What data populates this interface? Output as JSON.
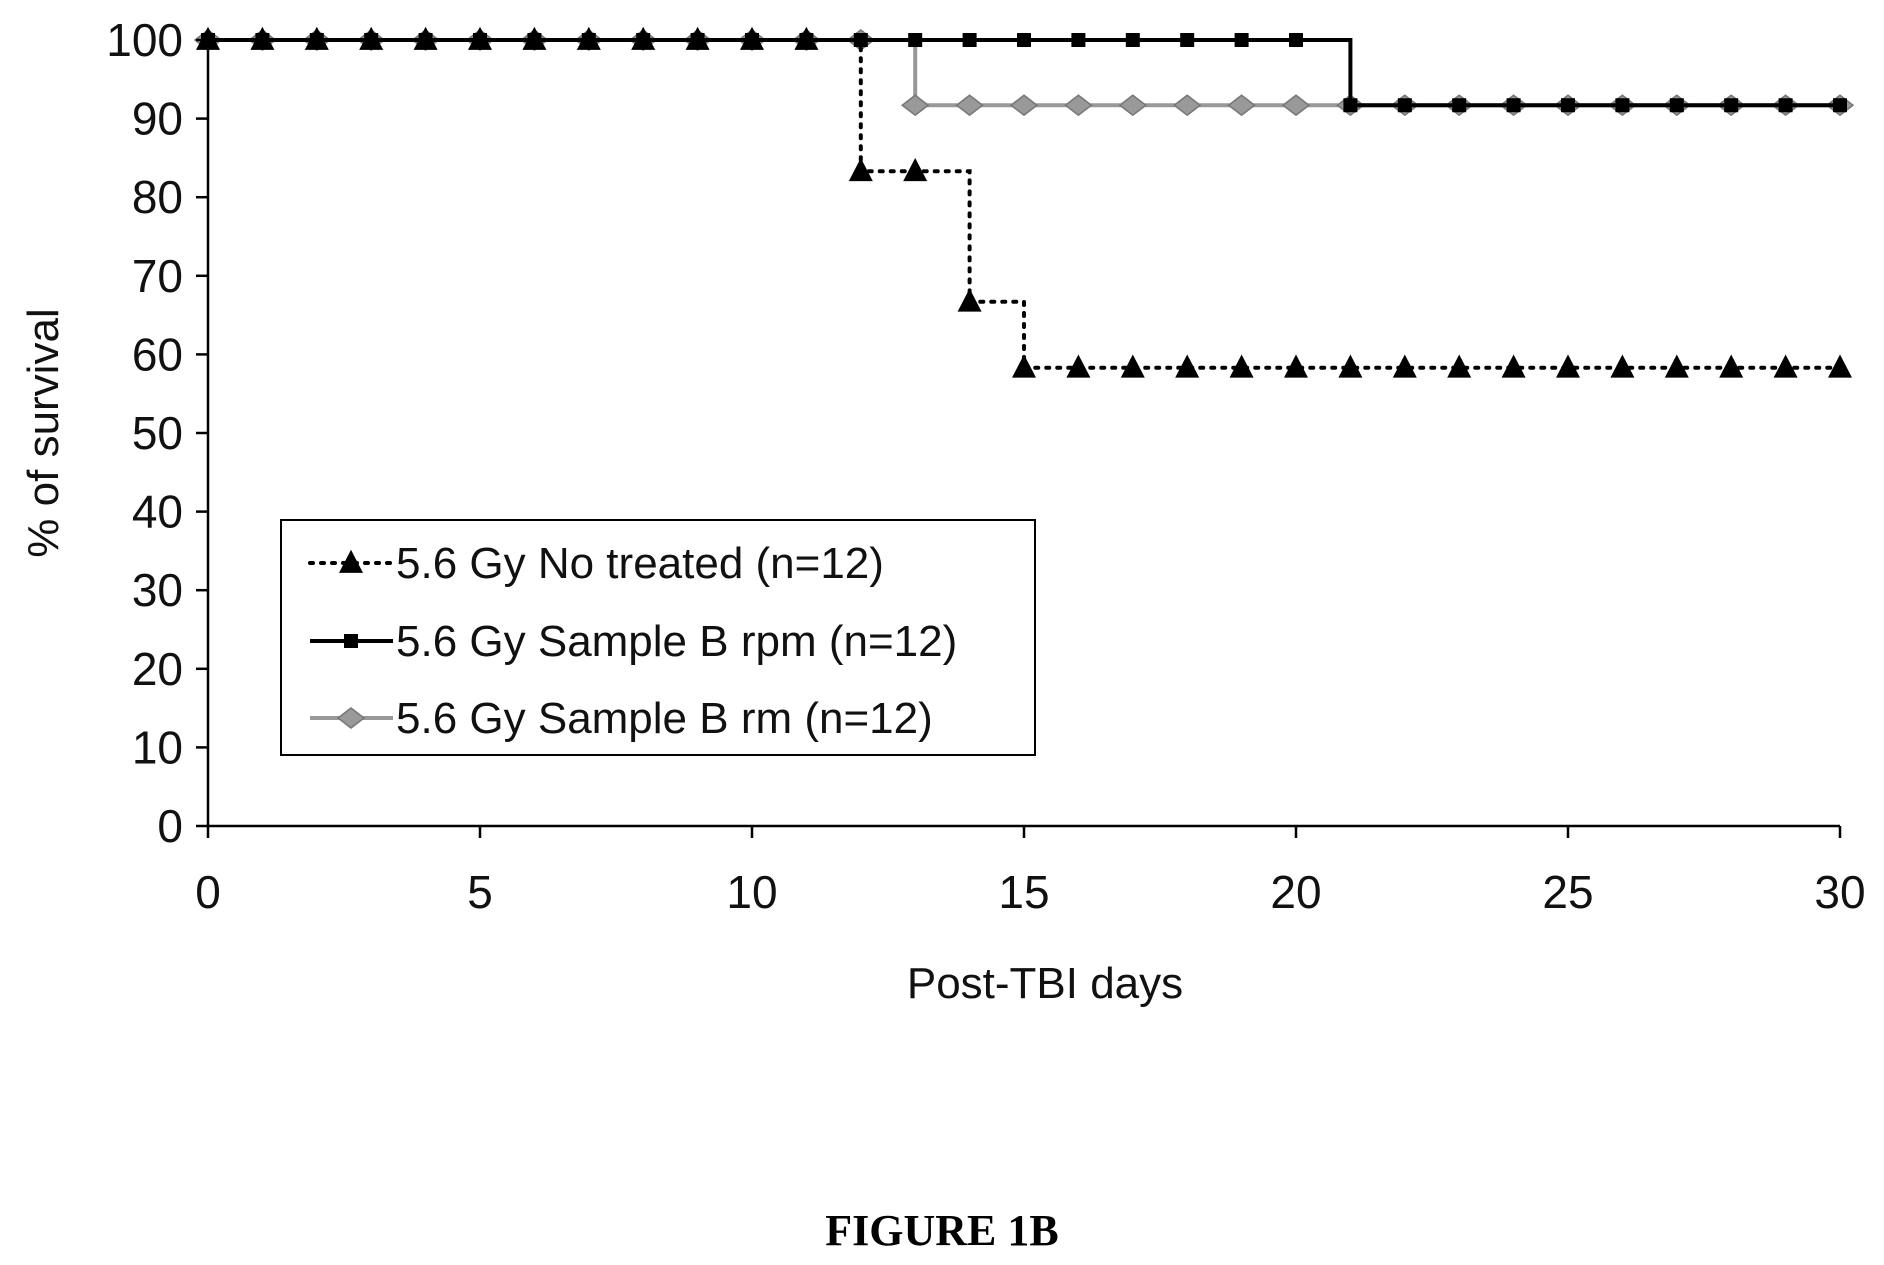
{
  "chart_data": {
    "type": "line",
    "xlabel": "Post-TBI days",
    "ylabel": "% of survival",
    "xlim": [
      0,
      30
    ],
    "ylim": [
      0,
      100
    ],
    "x_ticks": [
      0,
      5,
      10,
      15,
      20,
      25,
      30
    ],
    "y_ticks": [
      0,
      10,
      20,
      30,
      40,
      50,
      60,
      70,
      80,
      90,
      100
    ],
    "x_tick_labels": [
      "0",
      "5",
      "10",
      "15",
      "20",
      "25",
      "30"
    ],
    "y_tick_labels": [
      "0",
      "10",
      "20",
      "30",
      "40",
      "50",
      "60",
      "70",
      "80",
      "90",
      "100"
    ],
    "legend_position": "center-left",
    "grid": false,
    "series": [
      {
        "name": "5.6 Gy No treated (n=12)",
        "marker": "triangle",
        "line_style": "dotted",
        "color": "#000000",
        "x": [
          0,
          1,
          2,
          3,
          4,
          5,
          6,
          7,
          8,
          9,
          10,
          11,
          12,
          13,
          14,
          15,
          16,
          17,
          18,
          19,
          20,
          21,
          22,
          23,
          24,
          25,
          26,
          27,
          28,
          29,
          30
        ],
        "y": [
          100,
          100,
          100,
          100,
          100,
          100,
          100,
          100,
          100,
          100,
          100,
          100,
          83.3,
          83.3,
          66.7,
          58.3,
          58.3,
          58.3,
          58.3,
          58.3,
          58.3,
          58.3,
          58.3,
          58.3,
          58.3,
          58.3,
          58.3,
          58.3,
          58.3,
          58.3,
          58.3
        ]
      },
      {
        "name": "5.6 Gy Sample B rpm (n=12)",
        "marker": "square",
        "line_style": "solid",
        "color": "#000000",
        "x": [
          0,
          1,
          2,
          3,
          4,
          5,
          6,
          7,
          8,
          9,
          10,
          11,
          12,
          13,
          14,
          15,
          16,
          17,
          18,
          19,
          20,
          21,
          22,
          23,
          24,
          25,
          26,
          27,
          28,
          29,
          30
        ],
        "y": [
          100,
          100,
          100,
          100,
          100,
          100,
          100,
          100,
          100,
          100,
          100,
          100,
          100,
          100,
          100,
          100,
          100,
          100,
          100,
          100,
          100,
          91.7,
          91.7,
          91.7,
          91.7,
          91.7,
          91.7,
          91.7,
          91.7,
          91.7,
          91.7
        ]
      },
      {
        "name": "5.6 Gy Sample B rm (n=12)",
        "marker": "diamond",
        "line_style": "solid",
        "color": "#999999",
        "x": [
          0,
          1,
          2,
          3,
          4,
          5,
          6,
          7,
          8,
          9,
          10,
          11,
          12,
          13,
          14,
          15,
          16,
          17,
          18,
          19,
          20,
          21,
          22,
          23,
          24,
          25,
          26,
          27,
          28,
          29,
          30
        ],
        "y": [
          100,
          100,
          100,
          100,
          100,
          100,
          100,
          100,
          100,
          100,
          100,
          100,
          100,
          91.7,
          91.7,
          91.7,
          91.7,
          91.7,
          91.7,
          91.7,
          91.7,
          91.7,
          91.7,
          91.7,
          91.7,
          91.7,
          91.7,
          91.7,
          91.7,
          91.7,
          91.7
        ]
      }
    ]
  },
  "caption": "FIGURE 1B"
}
